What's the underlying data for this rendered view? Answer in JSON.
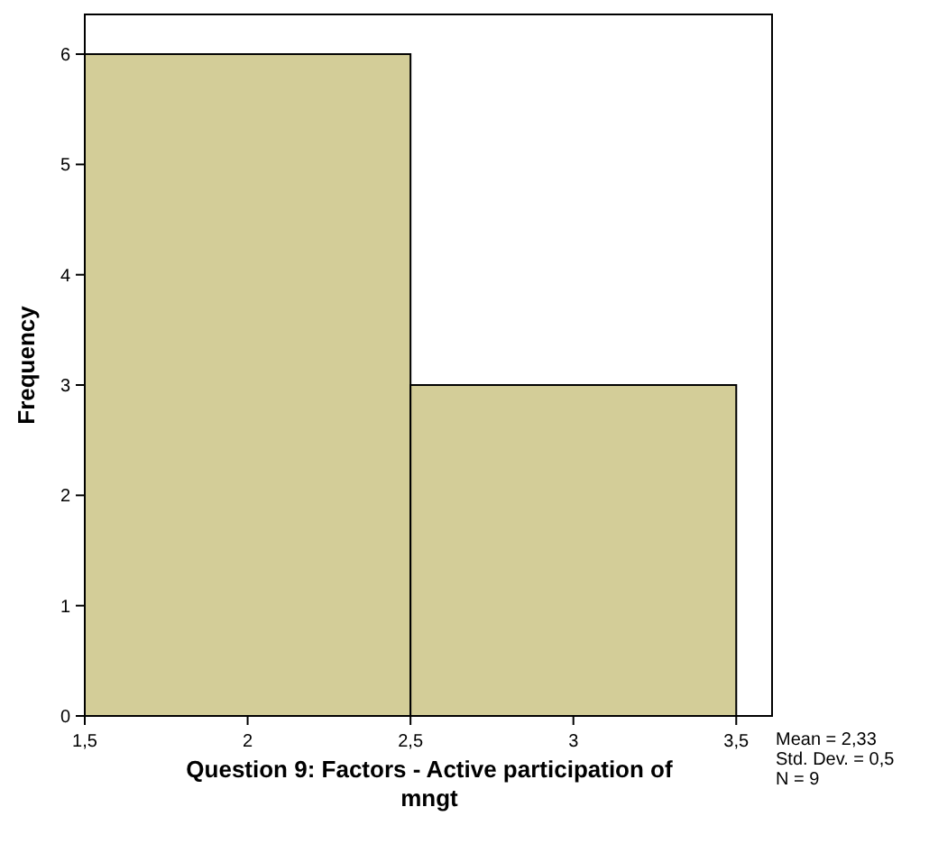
{
  "chart_data": {
    "type": "histogram",
    "xlabel": "Question 9: Factors - Active participation of mngt",
    "ylabel": "Frequency",
    "bins": [
      1.5,
      2.5,
      3.5
    ],
    "values": [
      6,
      3
    ],
    "color": "#d3cd98",
    "xlim": [
      1.5,
      3.61
    ],
    "ylim": [
      0,
      6.36
    ],
    "xticks": [
      {
        "value": 1.5,
        "label": "1,5"
      },
      2,
      {
        "value": 2.5,
        "label": "2,5"
      },
      3,
      {
        "value": 3.5,
        "label": "3,5"
      }
    ],
    "yticks": [
      0,
      1,
      2,
      3,
      4,
      5,
      6
    ],
    "annotations": [
      "Mean = 2,33",
      "Std. Dev. = 0,5",
      "N = 9"
    ]
  }
}
